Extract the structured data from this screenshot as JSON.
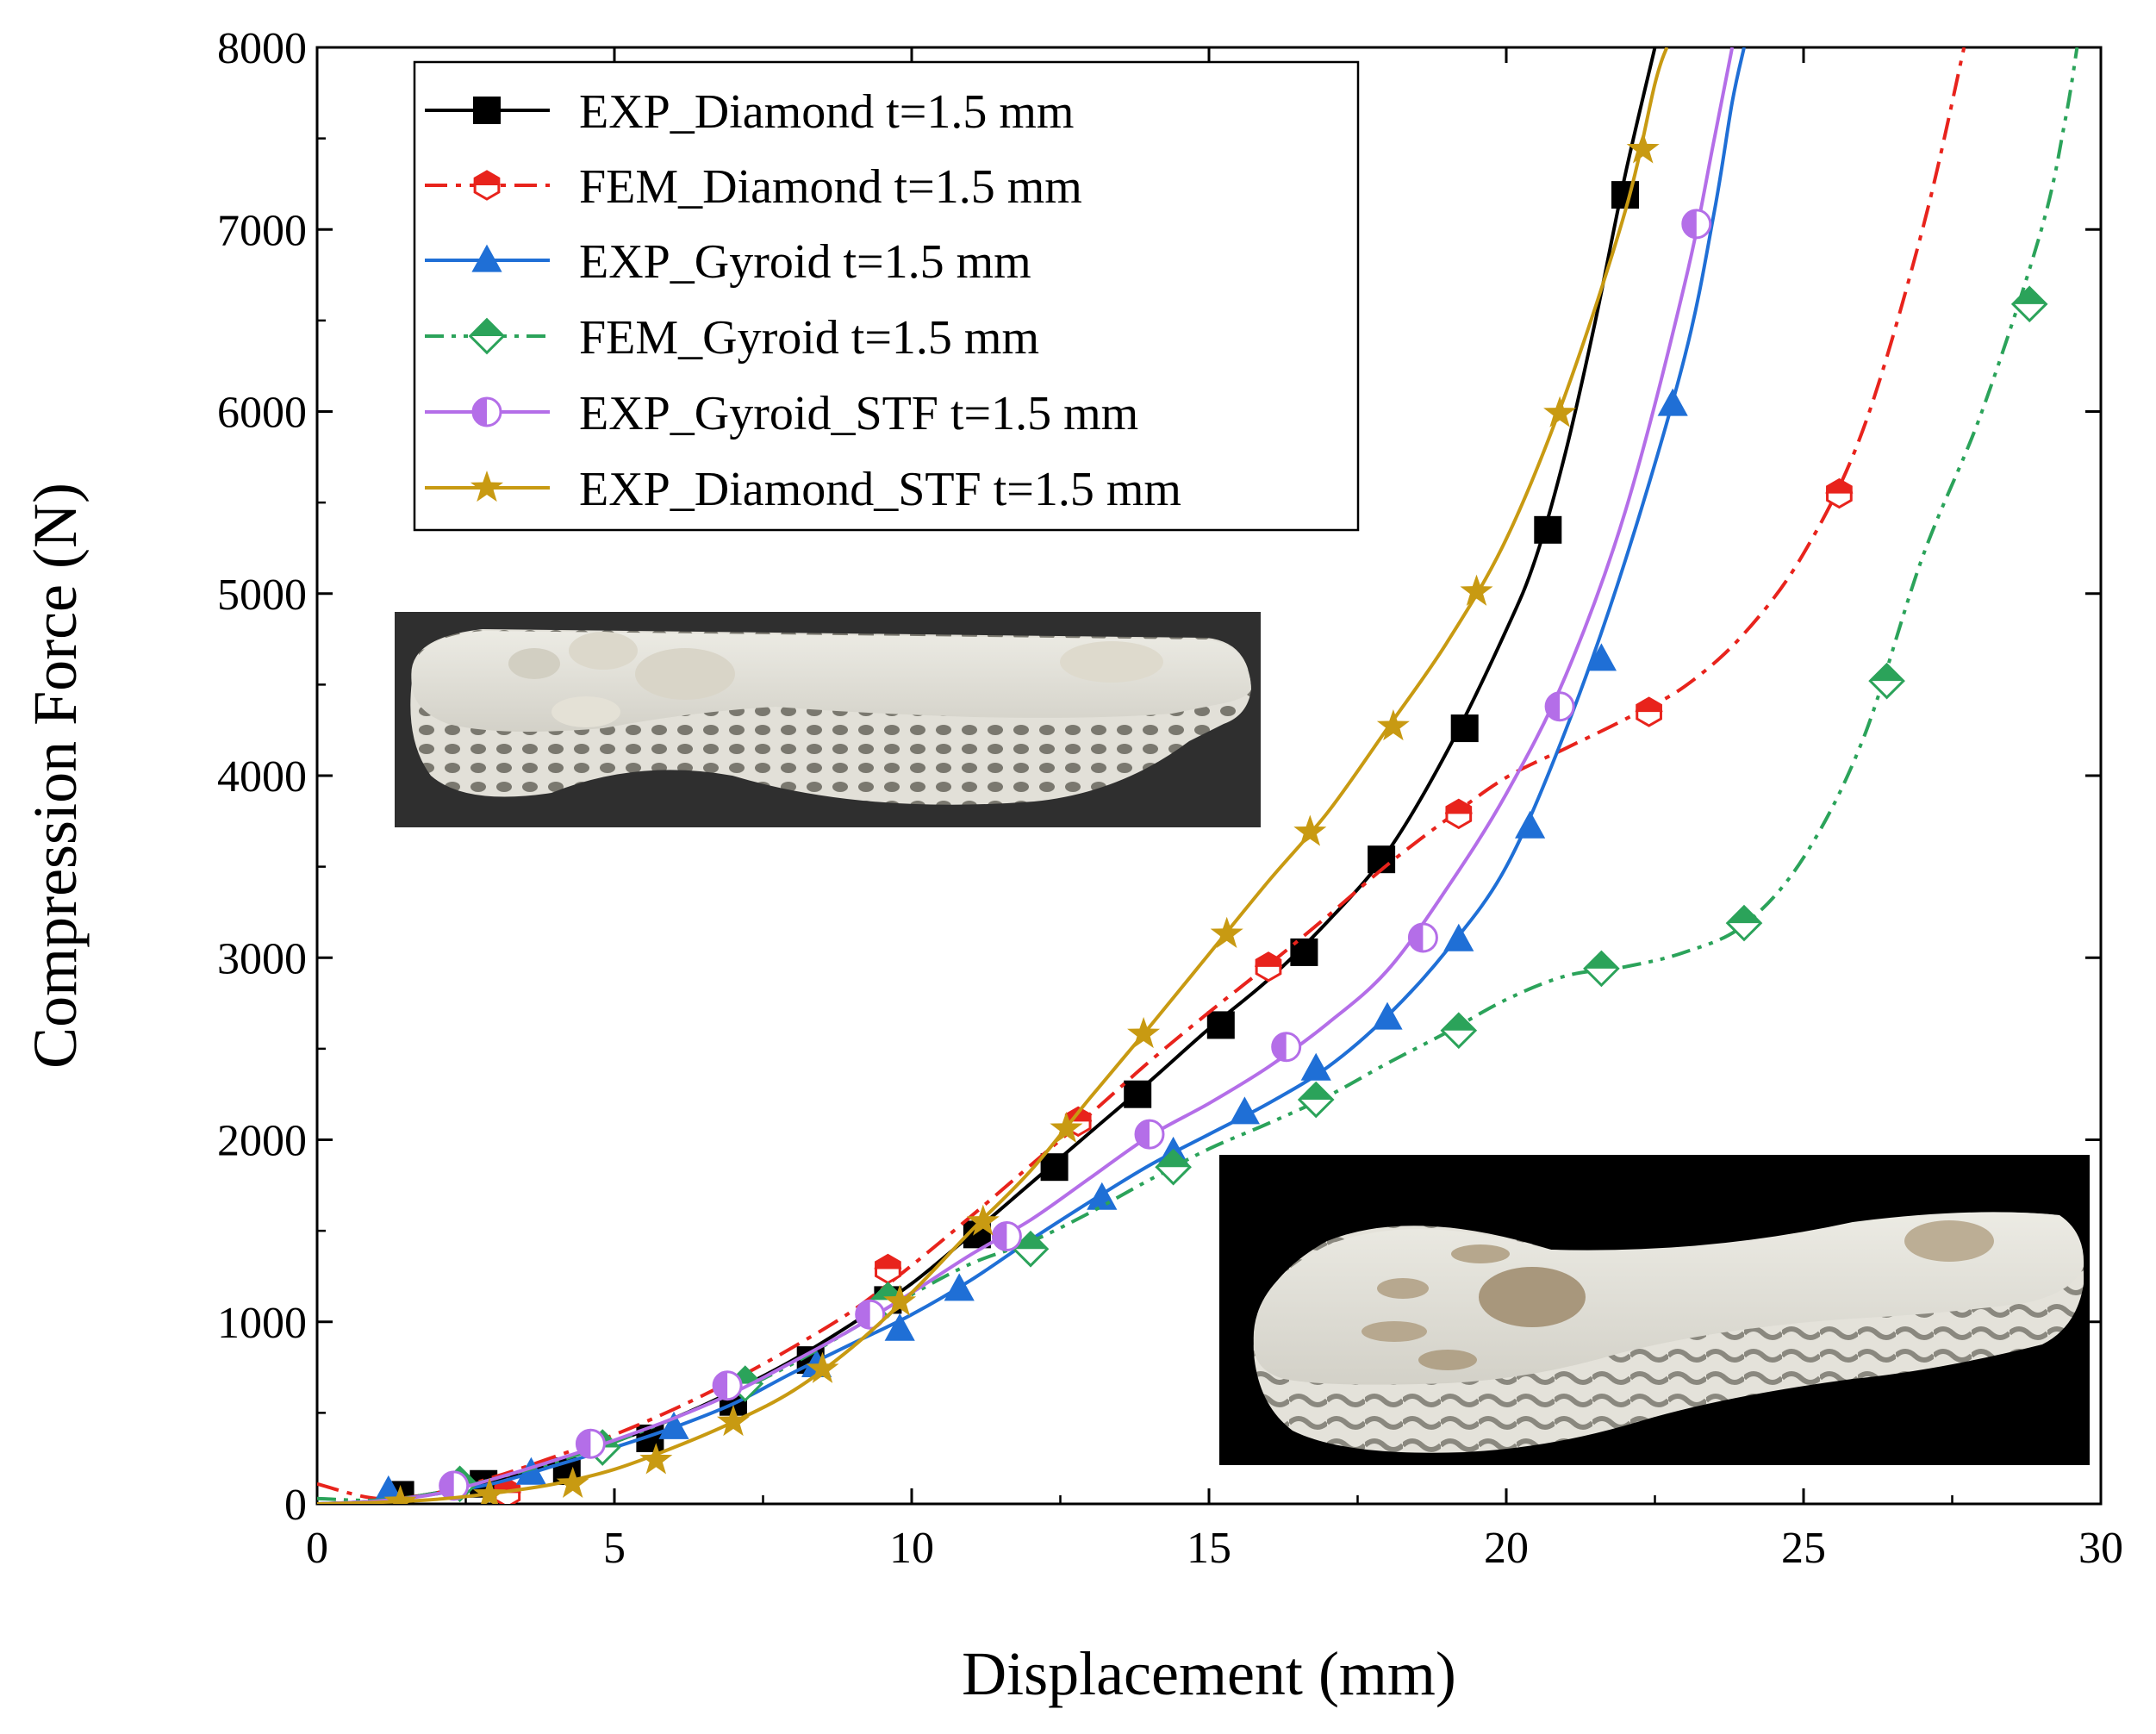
{
  "chart_data": {
    "type": "line",
    "title": "",
    "xlabel": "Displacement (mm)",
    "ylabel": "Compression Force (N)",
    "xlim": [
      0,
      30
    ],
    "ylim": [
      0,
      8000
    ],
    "xticks": [
      0,
      5,
      10,
      15,
      20,
      25,
      30
    ],
    "yticks": [
      0,
      1000,
      2000,
      3000,
      4000,
      5000,
      6000,
      7000,
      8000
    ],
    "grid": false,
    "legend_position": "top-left",
    "series": [
      {
        "name": "EXP_Diamond t=1.5 mm",
        "color": "#000000",
        "dash": "solid",
        "marker": "square",
        "line": [
          [
            0,
            0
          ],
          [
            1,
            15
          ],
          [
            2,
            60
          ],
          [
            3,
            130
          ],
          [
            4,
            230
          ],
          [
            5,
            340
          ],
          [
            6,
            470
          ],
          [
            7,
            620
          ],
          [
            8,
            790
          ],
          [
            9,
            990
          ],
          [
            10,
            1210
          ],
          [
            11,
            1480
          ],
          [
            12,
            1760
          ],
          [
            13,
            2040
          ],
          [
            14,
            2320
          ],
          [
            15,
            2610
          ],
          [
            16,
            2880
          ],
          [
            17,
            3200
          ],
          [
            18,
            3580
          ],
          [
            19,
            4130
          ],
          [
            20,
            4800
          ],
          [
            20.5,
            5200
          ],
          [
            21,
            5780
          ],
          [
            21.5,
            6500
          ],
          [
            22,
            7300
          ],
          [
            22.5,
            8000
          ]
        ],
        "markers": [
          [
            1.4,
            50
          ],
          [
            2.8,
            110
          ],
          [
            4.2,
            180
          ],
          [
            5.6,
            360
          ],
          [
            7,
            560
          ],
          [
            8.3,
            790
          ],
          [
            9.6,
            1120
          ],
          [
            11.1,
            1480
          ],
          [
            12.4,
            1850
          ],
          [
            13.8,
            2250
          ],
          [
            15.2,
            2630
          ],
          [
            16.6,
            3030
          ],
          [
            17.9,
            3540
          ],
          [
            19.3,
            4260
          ],
          [
            20.7,
            5350
          ],
          [
            22,
            7190
          ]
        ]
      },
      {
        "name": "FEM_Diamond t=1.5 mm",
        "color": "#e8231c",
        "dash": "dashdot",
        "marker": "half-hexagon",
        "line": [
          [
            0,
            110
          ],
          [
            1,
            30
          ],
          [
            2,
            60
          ],
          [
            3,
            150
          ],
          [
            4,
            260
          ],
          [
            5,
            380
          ],
          [
            6,
            520
          ],
          [
            7,
            680
          ],
          [
            8,
            860
          ],
          [
            9,
            1060
          ],
          [
            10,
            1310
          ],
          [
            11,
            1580
          ],
          [
            12,
            1860
          ],
          [
            13,
            2140
          ],
          [
            14,
            2430
          ],
          [
            15,
            2700
          ],
          [
            16,
            2960
          ],
          [
            17,
            3230
          ],
          [
            18,
            3510
          ],
          [
            19,
            3760
          ],
          [
            20,
            3990
          ],
          [
            21,
            4150
          ],
          [
            22,
            4310
          ],
          [
            23,
            4490
          ],
          [
            24,
            4780
          ],
          [
            25,
            5220
          ],
          [
            26,
            5900
          ],
          [
            27,
            7000
          ],
          [
            27.7,
            8000
          ]
        ],
        "markers": [
          [
            3.2,
            60
          ],
          [
            9.6,
            1290
          ],
          [
            12.8,
            2100
          ],
          [
            16,
            2950
          ],
          [
            19.2,
            3790
          ],
          [
            22.4,
            4350
          ],
          [
            25.6,
            5550
          ]
        ]
      },
      {
        "name": "EXP_Gyroid  t=1.5 mm",
        "color": "#1f6fd6",
        "dash": "solid",
        "marker": "triangle",
        "line": [
          [
            0,
            0
          ],
          [
            1,
            15
          ],
          [
            2,
            55
          ],
          [
            3,
            115
          ],
          [
            4,
            210
          ],
          [
            5,
            310
          ],
          [
            6,
            420
          ],
          [
            7,
            550
          ],
          [
            8,
            720
          ],
          [
            9,
            880
          ],
          [
            10,
            1040
          ],
          [
            11,
            1230
          ],
          [
            12,
            1450
          ],
          [
            13,
            1660
          ],
          [
            14,
            1860
          ],
          [
            15,
            2030
          ],
          [
            16,
            2200
          ],
          [
            17,
            2400
          ],
          [
            18,
            2680
          ],
          [
            19,
            3040
          ],
          [
            20,
            3500
          ],
          [
            21,
            4250
          ],
          [
            22,
            5180
          ],
          [
            23,
            6300
          ],
          [
            23.5,
            7100
          ],
          [
            23.8,
            7700
          ],
          [
            24,
            8000
          ]
        ],
        "markers": [
          [
            1.2,
            70
          ],
          [
            3.6,
            170
          ],
          [
            6,
            420
          ],
          [
            8.4,
            760
          ],
          [
            9.8,
            960
          ],
          [
            10.8,
            1180
          ],
          [
            13.2,
            1680
          ],
          [
            14.4,
            1930
          ],
          [
            15.6,
            2150
          ],
          [
            16.8,
            2390
          ],
          [
            18,
            2670
          ],
          [
            19.2,
            3100
          ],
          [
            20.4,
            3720
          ],
          [
            21.6,
            4640
          ],
          [
            22.8,
            6040
          ]
        ]
      },
      {
        "name": "FEM_Gyroid  t=1.5 mm",
        "color": "#2ba35a",
        "dash": "dashdotdot",
        "marker": "half-diamond",
        "line": [
          [
            0,
            30
          ],
          [
            1,
            20
          ],
          [
            2,
            60
          ],
          [
            3,
            140
          ],
          [
            4,
            230
          ],
          [
            5,
            340
          ],
          [
            6,
            470
          ],
          [
            7,
            610
          ],
          [
            8,
            770
          ],
          [
            9,
            960
          ],
          [
            10,
            1150
          ],
          [
            11,
            1320
          ],
          [
            12,
            1440
          ],
          [
            13,
            1600
          ],
          [
            14,
            1780
          ],
          [
            15,
            1950
          ],
          [
            16,
            2090
          ],
          [
            17,
            2240
          ],
          [
            18,
            2420
          ],
          [
            19,
            2590
          ],
          [
            20,
            2770
          ],
          [
            21,
            2900
          ],
          [
            22,
            2950
          ],
          [
            23,
            3030
          ],
          [
            24,
            3180
          ],
          [
            25,
            3550
          ],
          [
            26,
            4200
          ],
          [
            27,
            5200
          ],
          [
            28,
            6000
          ],
          [
            29,
            7000
          ],
          [
            29.4,
            7600
          ],
          [
            29.6,
            8000
          ]
        ],
        "markers": [
          [
            2.4,
            110
          ],
          [
            4.8,
            310
          ],
          [
            7.2,
            660
          ],
          [
            9.6,
            1120
          ],
          [
            12,
            1400
          ],
          [
            14.4,
            1850
          ],
          [
            16.8,
            2220
          ],
          [
            19.2,
            2600
          ],
          [
            21.6,
            2940
          ],
          [
            24,
            3190
          ],
          [
            26.4,
            4520
          ],
          [
            28.8,
            6590
          ]
        ]
      },
      {
        "name": "EXP_Gyroid_STF  t=1.5 mm",
        "color": "#b46ee8",
        "dash": "solid",
        "marker": "half-circle",
        "line": [
          [
            0,
            0
          ],
          [
            1,
            15
          ],
          [
            2,
            55
          ],
          [
            3,
            140
          ],
          [
            4,
            240
          ],
          [
            5,
            350
          ],
          [
            6,
            470
          ],
          [
            7,
            610
          ],
          [
            8,
            780
          ],
          [
            9,
            960
          ],
          [
            10,
            1160
          ],
          [
            11,
            1370
          ],
          [
            12,
            1560
          ],
          [
            13,
            1790
          ],
          [
            14,
            2020
          ],
          [
            15,
            2200
          ],
          [
            16,
            2400
          ],
          [
            17,
            2640
          ],
          [
            18,
            2930
          ],
          [
            19,
            3380
          ],
          [
            20,
            3900
          ],
          [
            21,
            4550
          ],
          [
            22,
            5450
          ],
          [
            23,
            6700
          ],
          [
            23.5,
            7500
          ],
          [
            23.8,
            8000
          ]
        ],
        "markers": [
          [
            2.3,
            100
          ],
          [
            4.6,
            330
          ],
          [
            6.9,
            650
          ],
          [
            9.3,
            1040
          ],
          [
            11.6,
            1470
          ],
          [
            14,
            2030
          ],
          [
            16.3,
            2510
          ],
          [
            18.6,
            3110
          ],
          [
            20.9,
            4380
          ],
          [
            23.2,
            7030
          ]
        ]
      },
      {
        "name": "EXP_Diamond_STF t=1.5 mm",
        "color": "#c89a12",
        "dash": "solid",
        "marker": "star",
        "line": [
          [
            0,
            0
          ],
          [
            1,
            8
          ],
          [
            2,
            25
          ],
          [
            3,
            60
          ],
          [
            4,
            110
          ],
          [
            5,
            190
          ],
          [
            6,
            310
          ],
          [
            7,
            450
          ],
          [
            8,
            620
          ],
          [
            9,
            860
          ],
          [
            10,
            1160
          ],
          [
            11,
            1500
          ],
          [
            12,
            1830
          ],
          [
            13,
            2230
          ],
          [
            14,
            2620
          ],
          [
            15,
            3020
          ],
          [
            16,
            3420
          ],
          [
            17,
            3800
          ],
          [
            18,
            4260
          ],
          [
            19,
            4730
          ],
          [
            20,
            5300
          ],
          [
            21,
            6100
          ],
          [
            22,
            7100
          ],
          [
            22.5,
            7800
          ],
          [
            22.7,
            8000
          ]
        ],
        "markers": [
          [
            1.4,
            10
          ],
          [
            2.9,
            50
          ],
          [
            4.3,
            110
          ],
          [
            5.7,
            240
          ],
          [
            7,
            450
          ],
          [
            8.5,
            740
          ],
          [
            9.8,
            1110
          ],
          [
            11.2,
            1550
          ],
          [
            12.6,
            2060
          ],
          [
            13.9,
            2580
          ],
          [
            15.3,
            3130
          ],
          [
            16.7,
            3690
          ],
          [
            18.1,
            4270
          ],
          [
            19.5,
            5010
          ],
          [
            20.9,
            5990
          ],
          [
            22.3,
            7440
          ]
        ]
      }
    ]
  },
  "insets": {
    "top_photo": "insole-photo-top",
    "bottom_photo": "insole-photo-bottom"
  }
}
